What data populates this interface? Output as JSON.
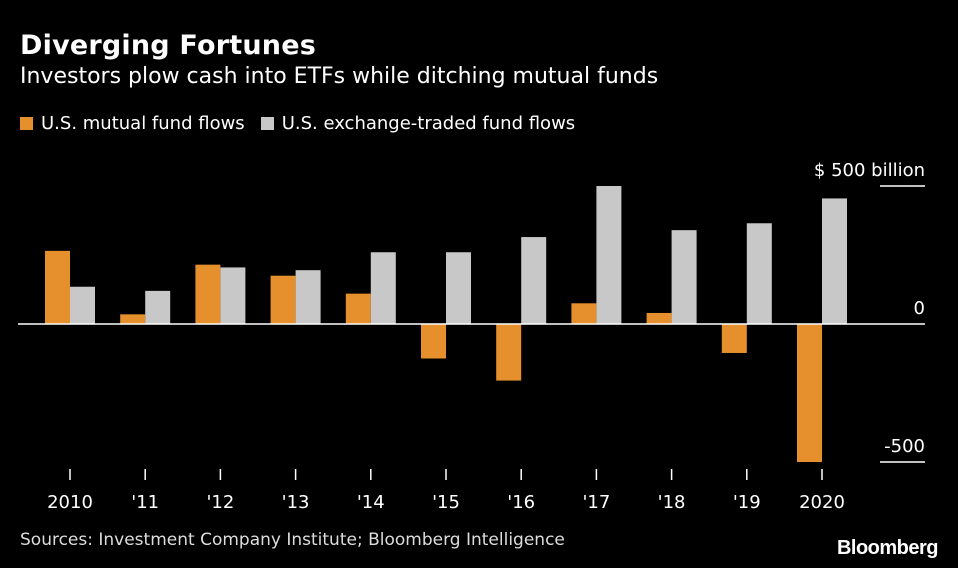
{
  "chart_data": {
    "type": "bar",
    "title": "Diverging Fortunes",
    "subtitle": "Investors plow cash into ETFs while ditching mutual funds",
    "categories": [
      "2010",
      "'11",
      "'12",
      "'13",
      "'14",
      "'15",
      "'16",
      "'17",
      "'18",
      "'19",
      "2020"
    ],
    "series": [
      {
        "name": "U.S. mutual fund flows",
        "color": "#e5902c",
        "values": [
          265,
          35,
          215,
          175,
          110,
          -125,
          -205,
          75,
          40,
          -105,
          -500
        ]
      },
      {
        "name": "U.S. exchange-traded fund flows",
        "color": "#c8c8c8",
        "values": [
          135,
          120,
          205,
          195,
          260,
          260,
          315,
          500,
          340,
          365,
          455
        ]
      }
    ],
    "ylim": [
      -500,
      500
    ],
    "yticks": [
      {
        "value": 500,
        "label": "$ 500 billion"
      },
      {
        "value": 0,
        "label": "0"
      },
      {
        "value": -500,
        "label": "-500"
      }
    ],
    "xlabel": "",
    "ylabel": "",
    "legend_position": "top-left",
    "grid": false,
    "source": "Sources: Investment Company Institute; Bloomberg Intelligence",
    "brand": "Bloomberg"
  }
}
